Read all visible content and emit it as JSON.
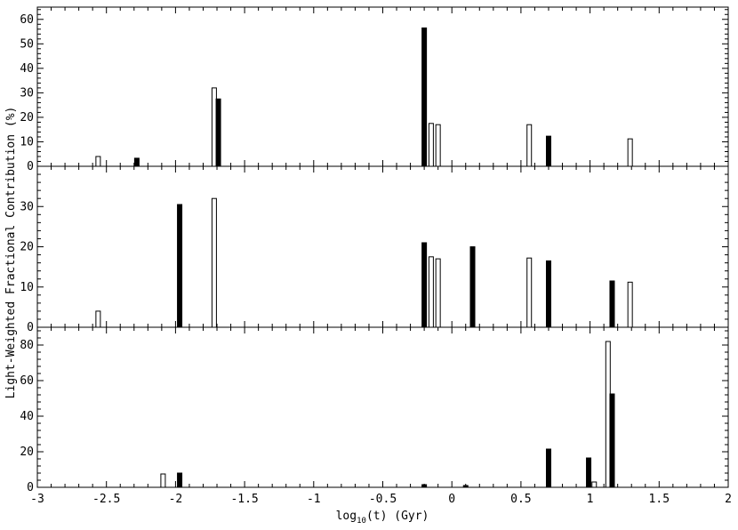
{
  "chart_data": {
    "type": "bar",
    "ylabel": "Light-Weighted Fractional Contribution  (%)",
    "xlabel_main": "log",
    "xlabel_sub": "10",
    "xlabel_tail": "(t)  (Gyr)",
    "xlim": [
      -3,
      2
    ],
    "xticks": [
      -3,
      -2.5,
      -2,
      -1.5,
      -1,
      -0.5,
      0,
      0.5,
      1,
      1.5,
      2
    ],
    "xtick_labels": [
      "-3",
      "-2.5",
      "-2",
      "-1.5",
      "-1",
      "-0.5",
      "0",
      "0.5",
      "1",
      "1.5",
      "2"
    ],
    "grid": false,
    "panels": [
      {
        "ylim": [
          0,
          65
        ],
        "yticks": [
          0,
          10,
          20,
          30,
          40,
          50,
          60
        ],
        "ytick_labels": [
          "0",
          "10",
          "20",
          "30",
          "40",
          "50",
          "60"
        ],
        "bars": [
          {
            "x": -2.56,
            "value": 4,
            "filled": false
          },
          {
            "x": -2.28,
            "value": 3.3,
            "filled": true
          },
          {
            "x": -1.72,
            "value": 32,
            "filled": false
          },
          {
            "x": -1.69,
            "value": 27.5,
            "filled": true
          },
          {
            "x": -0.2,
            "value": 56.5,
            "filled": true
          },
          {
            "x": -0.15,
            "value": 17.5,
            "filled": false
          },
          {
            "x": -0.1,
            "value": 17,
            "filled": false
          },
          {
            "x": 0.56,
            "value": 17,
            "filled": false
          },
          {
            "x": 0.7,
            "value": 12.3,
            "filled": true
          },
          {
            "x": 1.29,
            "value": 11.2,
            "filled": false
          }
        ]
      },
      {
        "ylim": [
          0,
          40
        ],
        "yticks": [
          0,
          10,
          20,
          30
        ],
        "ytick_labels": [
          "0",
          "10",
          "20",
          "30"
        ],
        "bars": [
          {
            "x": -2.56,
            "value": 4,
            "filled": false
          },
          {
            "x": -1.97,
            "value": 30.5,
            "filled": true
          },
          {
            "x": -1.72,
            "value": 32,
            "filled": false
          },
          {
            "x": -0.2,
            "value": 21,
            "filled": true
          },
          {
            "x": -0.15,
            "value": 17.5,
            "filled": false
          },
          {
            "x": -0.1,
            "value": 17,
            "filled": false
          },
          {
            "x": 0.15,
            "value": 20,
            "filled": true
          },
          {
            "x": 0.56,
            "value": 17.2,
            "filled": false
          },
          {
            "x": 0.7,
            "value": 16.5,
            "filled": true
          },
          {
            "x": 1.16,
            "value": 11.5,
            "filled": true
          },
          {
            "x": 1.29,
            "value": 11.2,
            "filled": false
          }
        ]
      },
      {
        "ylim": [
          0,
          90
        ],
        "yticks": [
          0,
          20,
          40,
          60,
          80
        ],
        "ytick_labels": [
          "0",
          "20",
          "40",
          "60",
          "80"
        ],
        "bars": [
          {
            "x": -2.09,
            "value": 7.5,
            "filled": false
          },
          {
            "x": -1.97,
            "value": 8,
            "filled": true
          },
          {
            "x": -0.2,
            "value": 1.5,
            "filled": true
          },
          {
            "x": 0.1,
            "value": 1,
            "filled": true
          },
          {
            "x": 0.7,
            "value": 21.5,
            "filled": true
          },
          {
            "x": 0.99,
            "value": 16.5,
            "filled": true
          },
          {
            "x": 1.03,
            "value": 3,
            "filled": false
          },
          {
            "x": 1.13,
            "value": 82,
            "filled": false
          },
          {
            "x": 1.16,
            "value": 52.5,
            "filled": true
          }
        ]
      }
    ]
  }
}
